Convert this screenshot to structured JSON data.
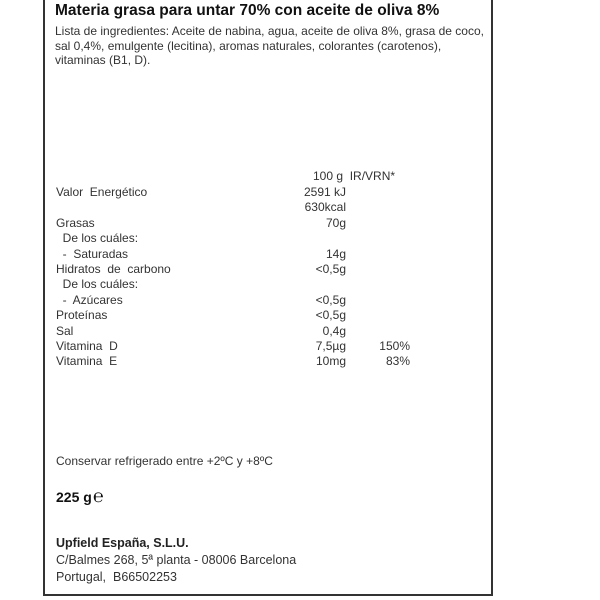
{
  "title": "Materia grasa para untar 70% con aceite de oliva 8%",
  "ingredients": "Lista de ingredientes: Aceite de nabina, agua, aceite de oliva 8%, grasa de coco, sal 0,4%, emulgente (lecitina), aromas naturales, colorantes (carotenos), vitaminas (B1, D).",
  "nutrition": {
    "header": {
      "per": "100 g",
      "ir": "IR/VRN*"
    },
    "rows": [
      {
        "label": "Valor  Energético",
        "value": "2591 kJ",
        "pct": ""
      },
      {
        "label": "",
        "value": "630kcal",
        "pct": ""
      },
      {
        "label": "Grasas",
        "value": "70g",
        "pct": ""
      },
      {
        "label": "  De los cuáles:",
        "value": "",
        "pct": ""
      },
      {
        "label": "  -  Saturadas",
        "value": "14g",
        "pct": ""
      },
      {
        "label": "Hidratos  de  carbono",
        "value": "<0,5g",
        "pct": ""
      },
      {
        "label": "  De los cuáles:",
        "value": "",
        "pct": ""
      },
      {
        "label": "  -  Azúcares",
        "value": "<0,5g",
        "pct": ""
      },
      {
        "label": "Proteínas",
        "value": "<0,5g",
        "pct": ""
      },
      {
        "label": "Sal",
        "value": "0,4g",
        "pct": ""
      },
      {
        "label": "Vitamina  D",
        "value": "7,5µg",
        "pct": "150%"
      },
      {
        "label": "Vitamina  E",
        "value": "10mg",
        "pct": "83%"
      }
    ]
  },
  "storage": "Conservar refrigerado entre +2ºC y +8ºC",
  "weight": "225 g",
  "estimated_sign": "℮",
  "company": {
    "name": "Upfield España, S.L.U.",
    "address1": "C/Balmes 268, 5ª planta - 08006 Barcelona",
    "address2": "Portugal,  B66502253"
  }
}
